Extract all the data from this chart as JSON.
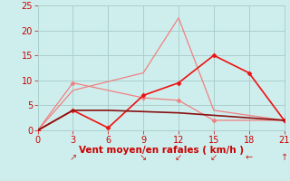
{
  "background_color": "#ceeeed",
  "grid_color": "#aacfcc",
  "xlabel": "Vent moyen/en rafales ( km/h )",
  "xlabel_color": "#cc0000",
  "xlabel_fontsize": 7.5,
  "tick_color": "#cc0000",
  "tick_fontsize": 7,
  "arrow_color": "#cc2222",
  "xlim": [
    0,
    21
  ],
  "ylim": [
    0,
    25
  ],
  "xticks": [
    0,
    3,
    6,
    9,
    12,
    15,
    18,
    21
  ],
  "yticks": [
    0,
    5,
    10,
    15,
    20,
    25
  ],
  "lines": [
    {
      "x": [
        0,
        3,
        9,
        12,
        15,
        21
      ],
      "y": [
        0,
        8,
        11.5,
        22.5,
        4,
        2
      ],
      "color": "#f08080",
      "linewidth": 0.9,
      "marker": null,
      "linestyle": "-"
    },
    {
      "x": [
        0,
        3,
        9,
        12,
        15,
        21
      ],
      "y": [
        0,
        9.5,
        6.5,
        6,
        2,
        2
      ],
      "color": "#f08080",
      "linewidth": 0.9,
      "marker": "D",
      "markersize": 2.5,
      "linestyle": "-"
    },
    {
      "x": [
        0,
        3,
        6,
        9,
        12,
        15,
        18,
        21
      ],
      "y": [
        0,
        4,
        0.5,
        7,
        9.5,
        15,
        11.5,
        2
      ],
      "color": "#ee1111",
      "linewidth": 1.2,
      "marker": "D",
      "markersize": 2.5,
      "linestyle": "-"
    },
    {
      "x": [
        0,
        3,
        6,
        12,
        21
      ],
      "y": [
        0,
        4,
        4,
        3.5,
        2
      ],
      "color": "#881111",
      "linewidth": 1.2,
      "marker": null,
      "linestyle": "-"
    }
  ],
  "wind_arrows": [
    {
      "x": 3,
      "sym": "↗"
    },
    {
      "x": 9,
      "sym": "↘"
    },
    {
      "x": 12,
      "sym": "↙"
    },
    {
      "x": 15,
      "sym": "↙"
    },
    {
      "x": 18,
      "sym": "←"
    },
    {
      "x": 21,
      "sym": "↑"
    }
  ]
}
